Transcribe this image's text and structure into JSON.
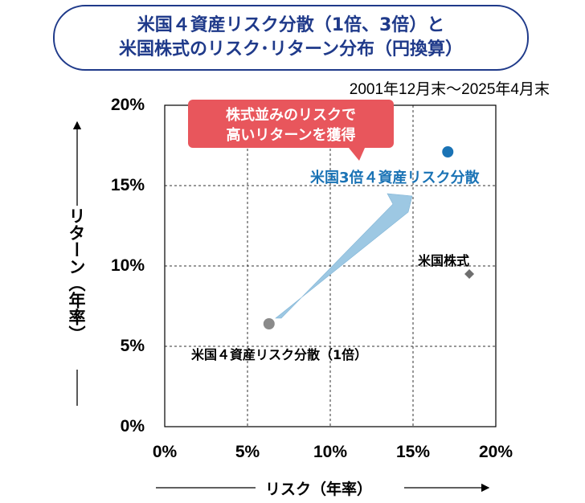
{
  "header": {
    "title_line1": "米国４資産リスク分散（1倍、3倍）と",
    "title_line2": "米国株式のリスク･リターン分布（円換算）",
    "period": "2001年12月末～2025年4月末"
  },
  "colors": {
    "title": "#1f3a8a",
    "highlight": "#1a73b5",
    "callout": "#e8565c",
    "arrow": "#9dc8e3",
    "point_base": "#8a8a8a",
    "point_stock": "#6e6e6e"
  },
  "callout": {
    "line1": "株式並みのリスクで",
    "line2": "高いリターンを獲得"
  },
  "chart_data": {
    "type": "scatter",
    "xlabel": "リスク（年率）",
    "ylabel": "リターン（年率）",
    "xlim": [
      0,
      20
    ],
    "ylim": [
      0,
      20
    ],
    "x_ticks": [
      "0%",
      "5%",
      "10%",
      "15%",
      "20%"
    ],
    "y_ticks": [
      "0%",
      "5%",
      "10%",
      "15%",
      "20%"
    ],
    "grid": true,
    "points": [
      {
        "name": "米国４資産リスク分散（1倍）",
        "x": 6.3,
        "y": 6.4,
        "marker": "circle",
        "color": "#8a8a8a"
      },
      {
        "name": "米国3倍４資産リスク分散",
        "x": 17.1,
        "y": 17.1,
        "marker": "circle",
        "color": "#1a73b5"
      },
      {
        "name": "米国株式",
        "x": 18.4,
        "y": 9.5,
        "marker": "diamond",
        "color": "#6e6e6e"
      }
    ]
  }
}
